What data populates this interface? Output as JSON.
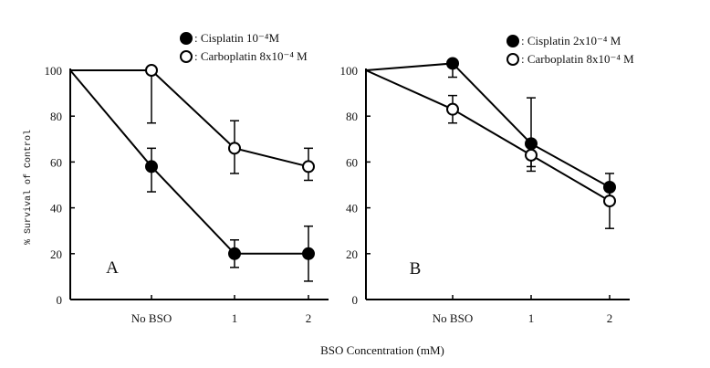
{
  "figure": {
    "xlabel": "BSO Concentration (mM)",
    "ylabel": "% Survival of Control"
  },
  "chart_data": [
    {
      "type": "line",
      "panel_label": "A",
      "categories": [
        "No BSO",
        "1",
        "2"
      ],
      "ylim": [
        0,
        100
      ],
      "yticks": [
        0,
        20,
        40,
        60,
        80,
        100
      ],
      "grid": false,
      "legend_position": "top-right",
      "series": [
        {
          "name": ": Cisplatin 10⁻⁴M",
          "marker": "filled-circle",
          "start_value": 100,
          "values": [
            58,
            20,
            20
          ],
          "error": [
            [
              47,
              66
            ],
            [
              14,
              26
            ],
            [
              8,
              32
            ]
          ]
        },
        {
          "name": ": Carboplatin 8x10⁻⁴ M",
          "marker": "open-circle",
          "start_value": 100,
          "values": [
            100,
            66,
            58
          ],
          "error": [
            [
              77,
              100
            ],
            [
              55,
              78
            ],
            [
              52,
              66
            ]
          ]
        }
      ]
    },
    {
      "type": "line",
      "panel_label": "B",
      "categories": [
        "No BSO",
        "1",
        "2"
      ],
      "ylim": [
        0,
        100
      ],
      "yticks": [
        0,
        20,
        40,
        60,
        80,
        100
      ],
      "grid": false,
      "legend_position": "top-right",
      "series": [
        {
          "name": ": Cisplatin 2x10⁻⁴ M",
          "marker": "filled-circle",
          "start_value": 100,
          "values": [
            103,
            68,
            49
          ],
          "error": [
            [
              97,
              103
            ],
            [
              56,
              88
            ],
            [
              44,
              55
            ]
          ]
        },
        {
          "name": ": Carboplatin 8x10⁻⁴ M",
          "marker": "open-circle",
          "start_value": 100,
          "values": [
            83,
            63,
            43
          ],
          "error": [
            [
              77,
              89
            ],
            [
              58,
              68
            ],
            [
              31,
              48
            ]
          ]
        }
      ]
    }
  ]
}
